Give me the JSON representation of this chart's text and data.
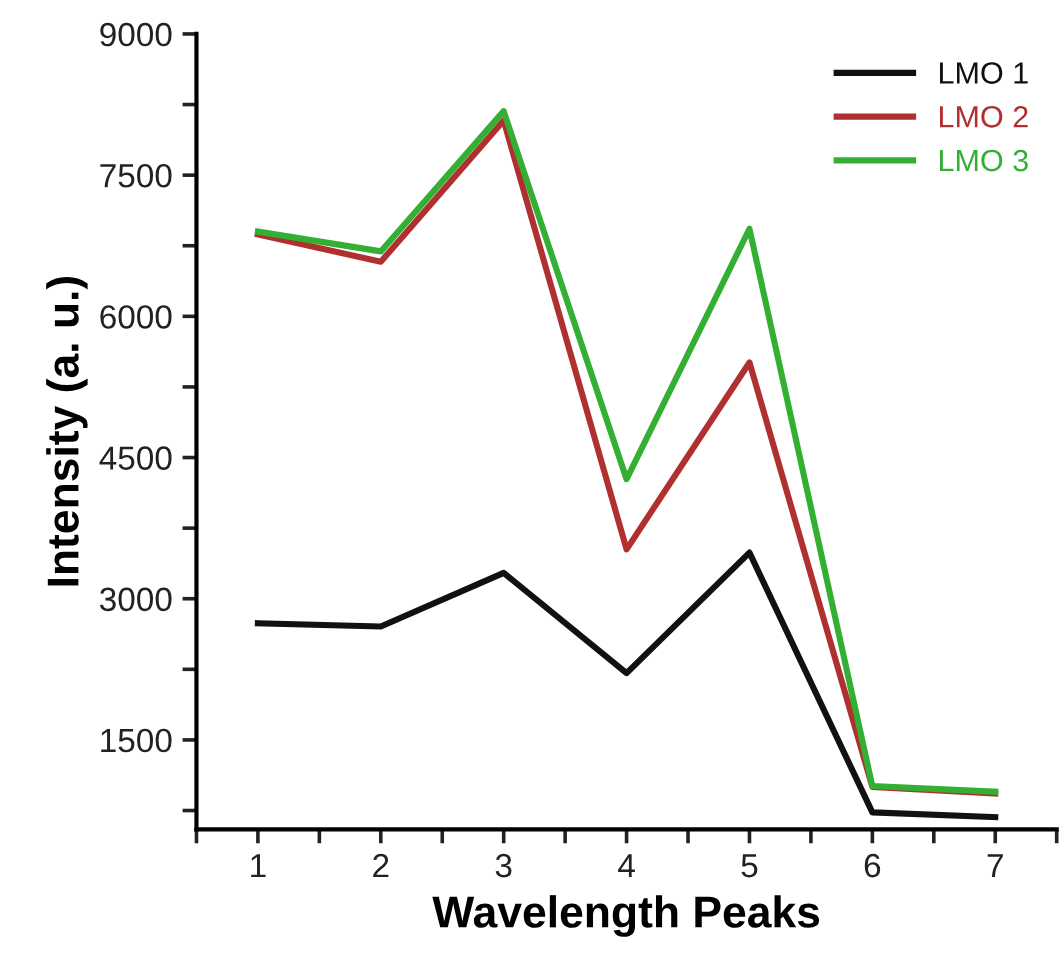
{
  "chart_data": {
    "type": "line",
    "xlabel": "Wavelength Peaks",
    "ylabel": "Intensity (a. u.)",
    "x": [
      1,
      2,
      3,
      4,
      5,
      6,
      7
    ],
    "series": [
      {
        "name": "LMO 1",
        "color": "#111111",
        "values": [
          2740,
          2705,
          3275,
          2210,
          3490,
          730,
          680
        ]
      },
      {
        "name": "LMO 2",
        "color": "#b03030",
        "values": [
          6870,
          6580,
          8080,
          3525,
          5510,
          1000,
          930
        ]
      },
      {
        "name": "LMO 3",
        "color": "#33b033",
        "values": [
          6900,
          6690,
          8180,
          4270,
          6930,
          1010,
          950
        ]
      }
    ],
    "xlim": [
      0.5,
      7.5
    ],
    "ylim": [
      550,
      9000
    ],
    "xticks": [
      {
        "value": 0.5,
        "label": null
      },
      1,
      {
        "value": 1.5,
        "label": null
      },
      2,
      {
        "value": 2.5,
        "label": null
      },
      3,
      {
        "value": 3.5,
        "label": null
      },
      4,
      {
        "value": 4.5,
        "label": null
      },
      5,
      {
        "value": 5.5,
        "label": null
      },
      6,
      {
        "value": 6.5,
        "label": null
      },
      7,
      {
        "value": 7.5,
        "label": null
      }
    ],
    "yticks": [
      {
        "value": 750,
        "label": null
      },
      1500,
      {
        "value": 2250,
        "label": null
      },
      3000,
      {
        "value": 3750,
        "label": null
      },
      4500,
      {
        "value": 5250,
        "label": null
      },
      6000,
      {
        "value": 6750,
        "label": null
      },
      7500,
      {
        "value": 8250,
        "label": null
      },
      9000
    ],
    "grid": false,
    "legend": "top right",
    "marker": "none",
    "line_style": "solid"
  }
}
